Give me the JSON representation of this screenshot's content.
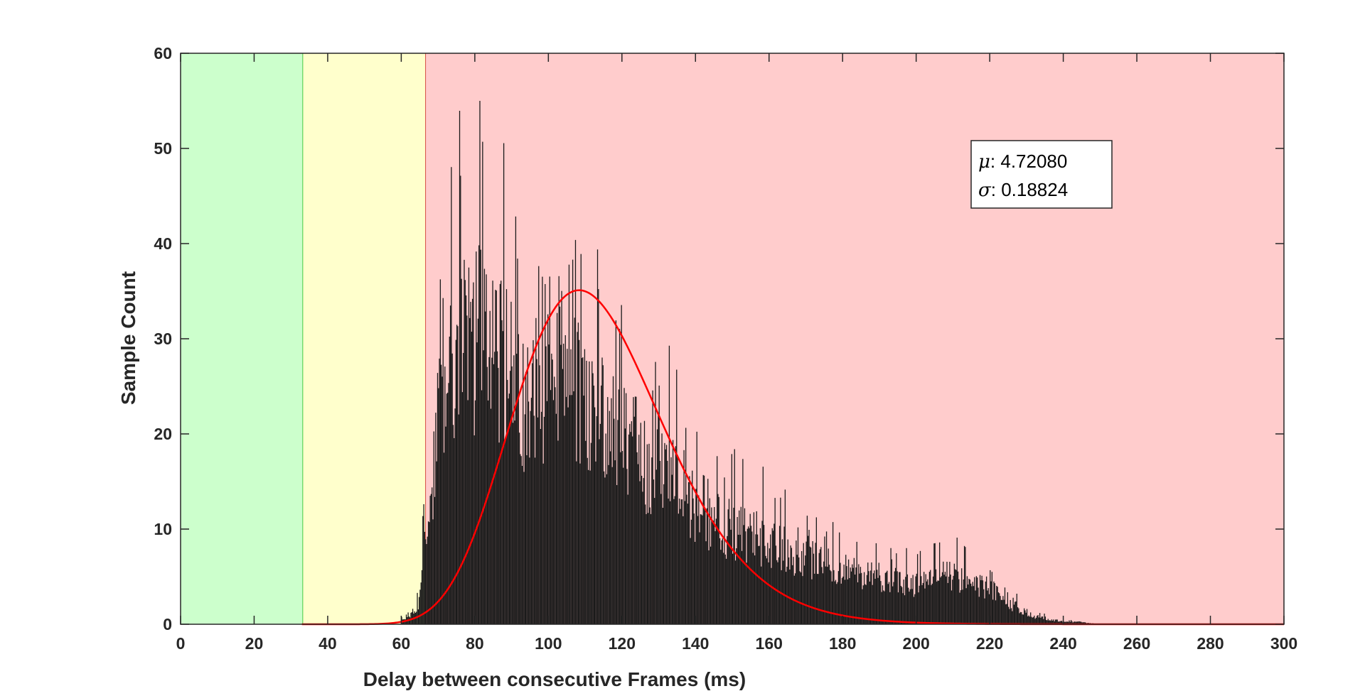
{
  "chart_data": {
    "type": "bar",
    "xlabel": "Delay between consecutive Frames (ms)",
    "ylabel": "Sample Count",
    "xlim": [
      0,
      300
    ],
    "ylim": [
      0,
      60
    ],
    "xticks": [
      0,
      20,
      40,
      60,
      80,
      100,
      120,
      140,
      160,
      180,
      200,
      220,
      240,
      260,
      280,
      300
    ],
    "yticks": [
      0,
      10,
      20,
      30,
      40,
      50,
      60
    ],
    "grid": false,
    "regions": [
      {
        "from": 0,
        "to": 33.3,
        "color": "#ccffcc",
        "edge_color": "#22bb22"
      },
      {
        "from": 33.3,
        "to": 66.7,
        "color": "#ffffcc",
        "edge_color": "#cc2222"
      },
      {
        "from": 66.7,
        "to": 300,
        "color": "#ffcccc"
      }
    ],
    "series": [
      {
        "kind": "histogram",
        "color": "#1a1a1a",
        "bin_width": 0.25,
        "envelope": {
          "x": [
            60,
            62,
            64,
            65,
            66,
            68,
            70,
            72,
            74,
            76,
            78,
            80,
            82,
            84,
            86,
            88,
            90,
            92,
            94,
            96,
            98,
            100,
            102,
            104,
            106,
            108,
            110,
            112,
            114,
            116,
            118,
            120,
            122,
            124,
            126,
            128,
            130,
            132,
            134,
            136,
            138,
            140,
            142,
            144,
            146,
            148,
            150,
            152,
            154,
            156,
            158,
            160,
            162,
            164,
            166,
            168,
            170,
            172,
            174,
            176,
            178,
            180,
            182,
            184,
            186,
            188,
            190,
            192,
            194,
            196,
            198,
            200,
            202,
            204,
            206,
            208,
            210,
            212,
            214,
            216,
            218,
            220,
            222,
            224,
            226,
            228,
            230,
            232,
            234,
            236,
            238,
            240,
            242,
            244,
            246,
            248,
            250
          ],
          "y": [
            0.5,
            1,
            2,
            3,
            8,
            15,
            25,
            31,
            34,
            35,
            35,
            36,
            37,
            36,
            35,
            34,
            31,
            29,
            28,
            29,
            30,
            31,
            32,
            36,
            34,
            30,
            28,
            26,
            26,
            25,
            24,
            23,
            23,
            22,
            21,
            21,
            20,
            19,
            18,
            17,
            16.5,
            15.5,
            14.5,
            14,
            13,
            12.5,
            12,
            11.5,
            11,
            11,
            10.5,
            10,
            10,
            9.5,
            9,
            8.5,
            8,
            8,
            7.5,
            7.5,
            7,
            7,
            6.5,
            6.5,
            6,
            6,
            6,
            5.5,
            5.5,
            5.5,
            5,
            5,
            5,
            6,
            6,
            6,
            6,
            5.5,
            5.5,
            5,
            5,
            4.5,
            4,
            3,
            2.5,
            2,
            1.5,
            1,
            0.8,
            0.6,
            0.5,
            0.4,
            0.3,
            0.3,
            0.2,
            0.1,
            0
          ]
        }
      },
      {
        "kind": "line",
        "color": "#ff0000",
        "fit": "lognormal",
        "mu": 4.7208,
        "sigma": 0.18824,
        "peak": 35.1,
        "x_range": [
          33,
          300
        ]
      }
    ],
    "legend": {
      "position": "top-right",
      "entries": [
        {
          "symbol": "μ",
          "value": ": 4.72080"
        },
        {
          "symbol": "σ",
          "value": ": 0.18824"
        }
      ]
    }
  }
}
